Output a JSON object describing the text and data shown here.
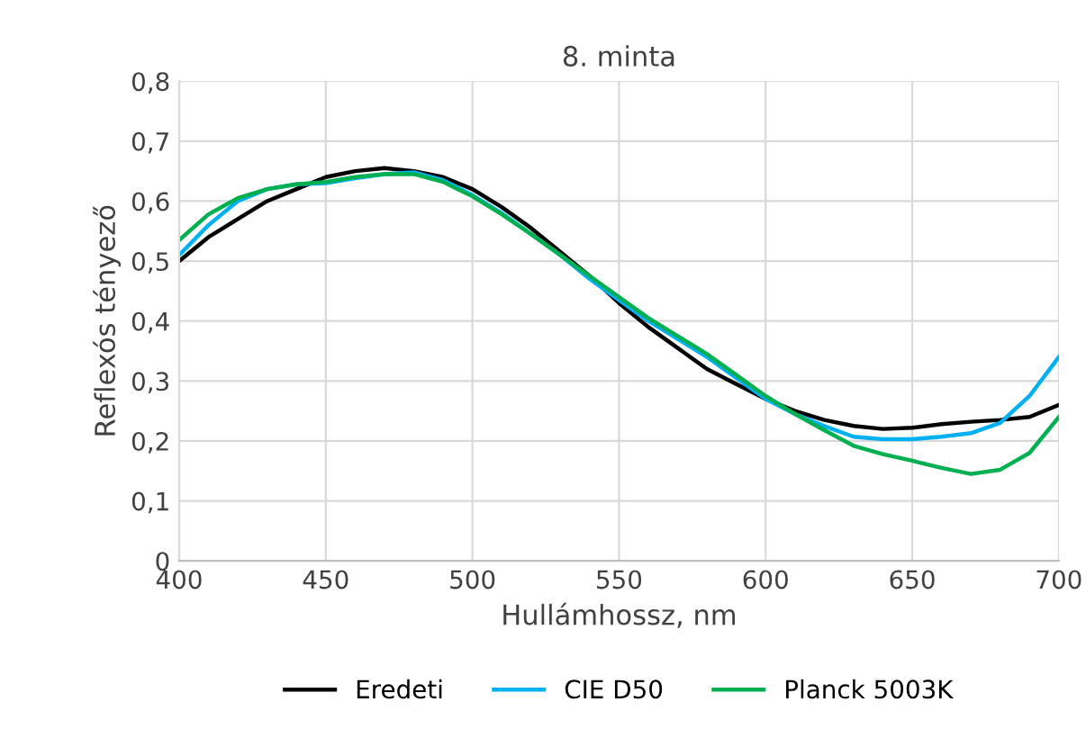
{
  "chart_data": {
    "type": "line",
    "title": "8. minta",
    "xlabel": "Hullámhossz, nm",
    "ylabel": "Reflexós tényező",
    "x": [
      400,
      410,
      420,
      430,
      440,
      450,
      460,
      470,
      480,
      490,
      500,
      510,
      520,
      530,
      540,
      550,
      560,
      570,
      580,
      590,
      600,
      610,
      620,
      630,
      640,
      650,
      660,
      670,
      680,
      690,
      700
    ],
    "series": [
      {
        "name": "Eredeti",
        "color": "#000000",
        "values": [
          0.5,
          0.54,
          0.57,
          0.6,
          0.62,
          0.64,
          0.65,
          0.655,
          0.65,
          0.64,
          0.62,
          0.59,
          0.555,
          0.515,
          0.475,
          0.43,
          0.39,
          0.355,
          0.32,
          0.295,
          0.27,
          0.25,
          0.235,
          0.225,
          0.22,
          0.222,
          0.228,
          0.232,
          0.235,
          0.24,
          0.26
        ]
      },
      {
        "name": "CIE D50",
        "color": "#00b0f0",
        "values": [
          0.51,
          0.56,
          0.6,
          0.62,
          0.628,
          0.63,
          0.638,
          0.645,
          0.648,
          0.635,
          0.61,
          0.58,
          0.545,
          0.51,
          0.47,
          0.435,
          0.4,
          0.37,
          0.34,
          0.305,
          0.27,
          0.245,
          0.225,
          0.207,
          0.203,
          0.203,
          0.207,
          0.213,
          0.23,
          0.275,
          0.34
        ]
      },
      {
        "name": "Planck 5003K",
        "color": "#00b050",
        "values": [
          0.535,
          0.578,
          0.605,
          0.62,
          0.628,
          0.632,
          0.64,
          0.645,
          0.645,
          0.632,
          0.608,
          0.578,
          0.545,
          0.51,
          0.475,
          0.44,
          0.405,
          0.375,
          0.345,
          0.31,
          0.275,
          0.245,
          0.218,
          0.192,
          0.178,
          0.167,
          0.155,
          0.145,
          0.152,
          0.18,
          0.24
        ]
      }
    ],
    "xlim": [
      400,
      700
    ],
    "xticks": [
      400,
      450,
      500,
      550,
      600,
      650,
      700
    ],
    "ylim": [
      0,
      0.8
    ],
    "yticks": [
      {
        "value": 0,
        "label": "0"
      },
      {
        "value": 0.1,
        "label": "0,1"
      },
      {
        "value": 0.2,
        "label": "0,2"
      },
      {
        "value": 0.3,
        "label": "0,3"
      },
      {
        "value": 0.4,
        "label": "0,4"
      },
      {
        "value": 0.5,
        "label": "0,5"
      },
      {
        "value": 0.6,
        "label": "0,6"
      },
      {
        "value": 0.7,
        "label": "0,7"
      },
      {
        "value": 0.8,
        "label": "0,8"
      }
    ],
    "grid": true,
    "legend": "bottom",
    "marker": "none",
    "line_style": "solid"
  }
}
